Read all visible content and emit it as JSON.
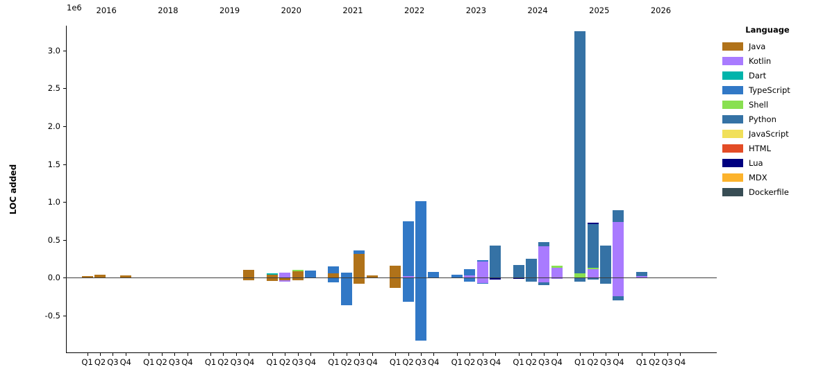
{
  "figure": {
    "background": "#ffffff"
  },
  "chart_data": {
    "type": "bar",
    "stacked": true,
    "title": "",
    "ylabel": "LOC added",
    "y_offset_label": "1e6",
    "grid": false,
    "legend": {
      "title": "Language",
      "position": "right"
    },
    "languages": [
      {
        "name": "Java",
        "color": "#b07219"
      },
      {
        "name": "Kotlin",
        "color": "#a97bff"
      },
      {
        "name": "Dart",
        "color": "#00b4ab"
      },
      {
        "name": "TypeScript",
        "color": "#3178c6"
      },
      {
        "name": "Shell",
        "color": "#89e051"
      },
      {
        "name": "Python",
        "color": "#3572a5"
      },
      {
        "name": "JavaScript",
        "color": "#f1e05a"
      },
      {
        "name": "HTML",
        "color": "#e34c26"
      },
      {
        "name": "Lua",
        "color": "#000080"
      },
      {
        "name": "MDX",
        "color": "#fcb32c"
      },
      {
        "name": "Dockerfile",
        "color": "#384d54"
      }
    ],
    "years": [
      "2016",
      "2018",
      "2019",
      "2020",
      "2021",
      "2022",
      "2023",
      "2024",
      "2025",
      "2026"
    ],
    "quarters": [
      "Q1",
      "Q2",
      "Q3",
      "Q4"
    ],
    "ylim": [
      -990000,
      3330000
    ],
    "yticks": [
      {
        "value": -500000,
        "label": "-0.5"
      },
      {
        "value": 0,
        "label": "0.0"
      },
      {
        "value": 500000,
        "label": "0.5"
      },
      {
        "value": 1000000,
        "label": "1.0"
      },
      {
        "value": 1500000,
        "label": "1.5"
      },
      {
        "value": 2000000,
        "label": "2.0"
      },
      {
        "value": 2500000,
        "label": "2.5"
      },
      {
        "value": 3000000,
        "label": "3.0"
      }
    ],
    "bars": [
      {
        "year": "2016",
        "quarter": "Q1",
        "pos": [
          {
            "lang": "Java",
            "loc": 18000
          }
        ],
        "neg": []
      },
      {
        "year": "2016",
        "quarter": "Q2",
        "pos": [
          {
            "lang": "Java",
            "loc": 35000
          }
        ],
        "neg": []
      },
      {
        "year": "2016",
        "quarter": "Q4",
        "pos": [
          {
            "lang": "Java",
            "loc": 25000
          }
        ],
        "neg": []
      },
      {
        "year": "2019",
        "quarter": "Q4",
        "pos": [
          {
            "lang": "Java",
            "loc": 100000
          }
        ],
        "neg": [
          {
            "lang": "Java",
            "loc": -35000
          }
        ]
      },
      {
        "year": "2020",
        "quarter": "Q1",
        "pos": [
          {
            "lang": "Java",
            "loc": 40000
          },
          {
            "lang": "Dart",
            "loc": 18000
          }
        ],
        "neg": [
          {
            "lang": "Java",
            "loc": -45000
          }
        ]
      },
      {
        "year": "2020",
        "quarter": "Q2",
        "pos": [
          {
            "lang": "Kotlin",
            "loc": 65000
          }
        ],
        "neg": [
          {
            "lang": "Java",
            "loc": -35000
          },
          {
            "lang": "Kotlin",
            "loc": -15000
          }
        ]
      },
      {
        "year": "2020",
        "quarter": "Q3",
        "pos": [
          {
            "lang": "Java",
            "loc": 80000
          },
          {
            "lang": "Shell",
            "loc": 18000
          }
        ],
        "neg": [
          {
            "lang": "Java",
            "loc": -40000
          }
        ]
      },
      {
        "year": "2020",
        "quarter": "Q4",
        "pos": [
          {
            "lang": "TypeScript",
            "loc": 90000
          }
        ],
        "neg": []
      },
      {
        "year": "2021",
        "quarter": "Q1",
        "pos": [
          {
            "lang": "Java",
            "loc": 60000
          },
          {
            "lang": "TypeScript",
            "loc": 85000
          }
        ],
        "neg": [
          {
            "lang": "TypeScript",
            "loc": -60000
          }
        ]
      },
      {
        "year": "2021",
        "quarter": "Q2",
        "pos": [
          {
            "lang": "TypeScript",
            "loc": 65000
          }
        ],
        "neg": [
          {
            "lang": "TypeScript",
            "loc": -370000
          }
        ]
      },
      {
        "year": "2021",
        "quarter": "Q3",
        "pos": [
          {
            "lang": "Java",
            "loc": 315000
          },
          {
            "lang": "TypeScript",
            "loc": 40000
          }
        ],
        "neg": [
          {
            "lang": "Java",
            "loc": -80000
          }
        ]
      },
      {
        "year": "2021",
        "quarter": "Q4",
        "pos": [
          {
            "lang": "Java",
            "loc": 25000
          }
        ],
        "neg": []
      },
      {
        "year": "2022",
        "quarter": "Q1",
        "pos": [
          {
            "lang": "Java",
            "loc": 160000
          }
        ],
        "neg": [
          {
            "lang": "Java",
            "loc": -135000
          }
        ]
      },
      {
        "year": "2022",
        "quarter": "Q2",
        "pos": [
          {
            "lang": "Kotlin",
            "loc": 20000
          },
          {
            "lang": "TypeScript",
            "loc": 720000
          }
        ],
        "neg": [
          {
            "lang": "TypeScript",
            "loc": -320000
          }
        ]
      },
      {
        "year": "2022",
        "quarter": "Q3",
        "pos": [
          {
            "lang": "TypeScript",
            "loc": 1010000
          }
        ],
        "neg": [
          {
            "lang": "TypeScript",
            "loc": -830000
          }
        ]
      },
      {
        "year": "2022",
        "quarter": "Q4",
        "pos": [
          {
            "lang": "TypeScript",
            "loc": 75000
          }
        ],
        "neg": []
      },
      {
        "year": "2023",
        "quarter": "Q1",
        "pos": [
          {
            "lang": "TypeScript",
            "loc": 40000
          }
        ],
        "neg": []
      },
      {
        "year": "2023",
        "quarter": "Q2",
        "pos": [
          {
            "lang": "Kotlin",
            "loc": 25000
          },
          {
            "lang": "TypeScript",
            "loc": 90000
          }
        ],
        "neg": [
          {
            "lang": "TypeScript",
            "loc": -50000
          }
        ]
      },
      {
        "year": "2023",
        "quarter": "Q3",
        "pos": [
          {
            "lang": "Kotlin",
            "loc": 215000
          },
          {
            "lang": "TypeScript",
            "loc": 12000
          }
        ],
        "neg": [
          {
            "lang": "Kotlin",
            "loc": -70000
          },
          {
            "lang": "TypeScript",
            "loc": -15000
          }
        ]
      },
      {
        "year": "2023",
        "quarter": "Q4",
        "pos": [
          {
            "lang": "Python",
            "loc": 420000
          }
        ],
        "neg": [
          {
            "lang": "Lua",
            "loc": -30000
          }
        ]
      },
      {
        "year": "2024",
        "quarter": "Q1",
        "pos": [
          {
            "lang": "Python",
            "loc": 170000
          }
        ],
        "neg": [
          {
            "lang": "Lua",
            "loc": -20000
          }
        ]
      },
      {
        "year": "2024",
        "quarter": "Q2",
        "pos": [
          {
            "lang": "Python",
            "loc": 250000
          }
        ],
        "neg": [
          {
            "lang": "Python",
            "loc": -55000
          }
        ]
      },
      {
        "year": "2024",
        "quarter": "Q3",
        "pos": [
          {
            "lang": "Kotlin",
            "loc": 410000
          },
          {
            "lang": "Python",
            "loc": 60000
          }
        ],
        "neg": [
          {
            "lang": "Kotlin",
            "loc": -65000
          },
          {
            "lang": "Python",
            "loc": -35000
          }
        ]
      },
      {
        "year": "2024",
        "quarter": "Q4",
        "pos": [
          {
            "lang": "Kotlin",
            "loc": 130000
          },
          {
            "lang": "Shell",
            "loc": 25000
          }
        ],
        "neg": [
          {
            "lang": "Kotlin",
            "loc": -20000
          }
        ]
      },
      {
        "year": "2025",
        "quarter": "Q1",
        "pos": [
          {
            "lang": "Shell",
            "loc": 60000
          },
          {
            "lang": "Python",
            "loc": 3200000
          }
        ],
        "neg": [
          {
            "lang": "Python",
            "loc": -55000
          }
        ]
      },
      {
        "year": "2025",
        "quarter": "Q2",
        "pos": [
          {
            "lang": "Kotlin",
            "loc": 110000
          },
          {
            "lang": "Shell",
            "loc": 20000
          },
          {
            "lang": "Python",
            "loc": 580000
          },
          {
            "lang": "Lua",
            "loc": 18000
          }
        ],
        "neg": [
          {
            "lang": "Python",
            "loc": -30000
          }
        ]
      },
      {
        "year": "2025",
        "quarter": "Q3",
        "pos": [
          {
            "lang": "Python",
            "loc": 420000
          }
        ],
        "neg": [
          {
            "lang": "Python",
            "loc": -80000
          }
        ]
      },
      {
        "year": "2025",
        "quarter": "Q4",
        "pos": [
          {
            "lang": "Kotlin",
            "loc": 730000
          },
          {
            "lang": "Python",
            "loc": 160000
          }
        ],
        "neg": [
          {
            "lang": "Kotlin",
            "loc": -250000
          },
          {
            "lang": "Python",
            "loc": -50000
          }
        ]
      },
      {
        "year": "2026",
        "quarter": "Q1",
        "pos": [
          {
            "lang": "Kotlin",
            "loc": 20000
          },
          {
            "lang": "Python",
            "loc": 55000
          }
        ],
        "neg": [
          {
            "lang": "Kotlin",
            "loc": -10000
          }
        ]
      }
    ]
  }
}
